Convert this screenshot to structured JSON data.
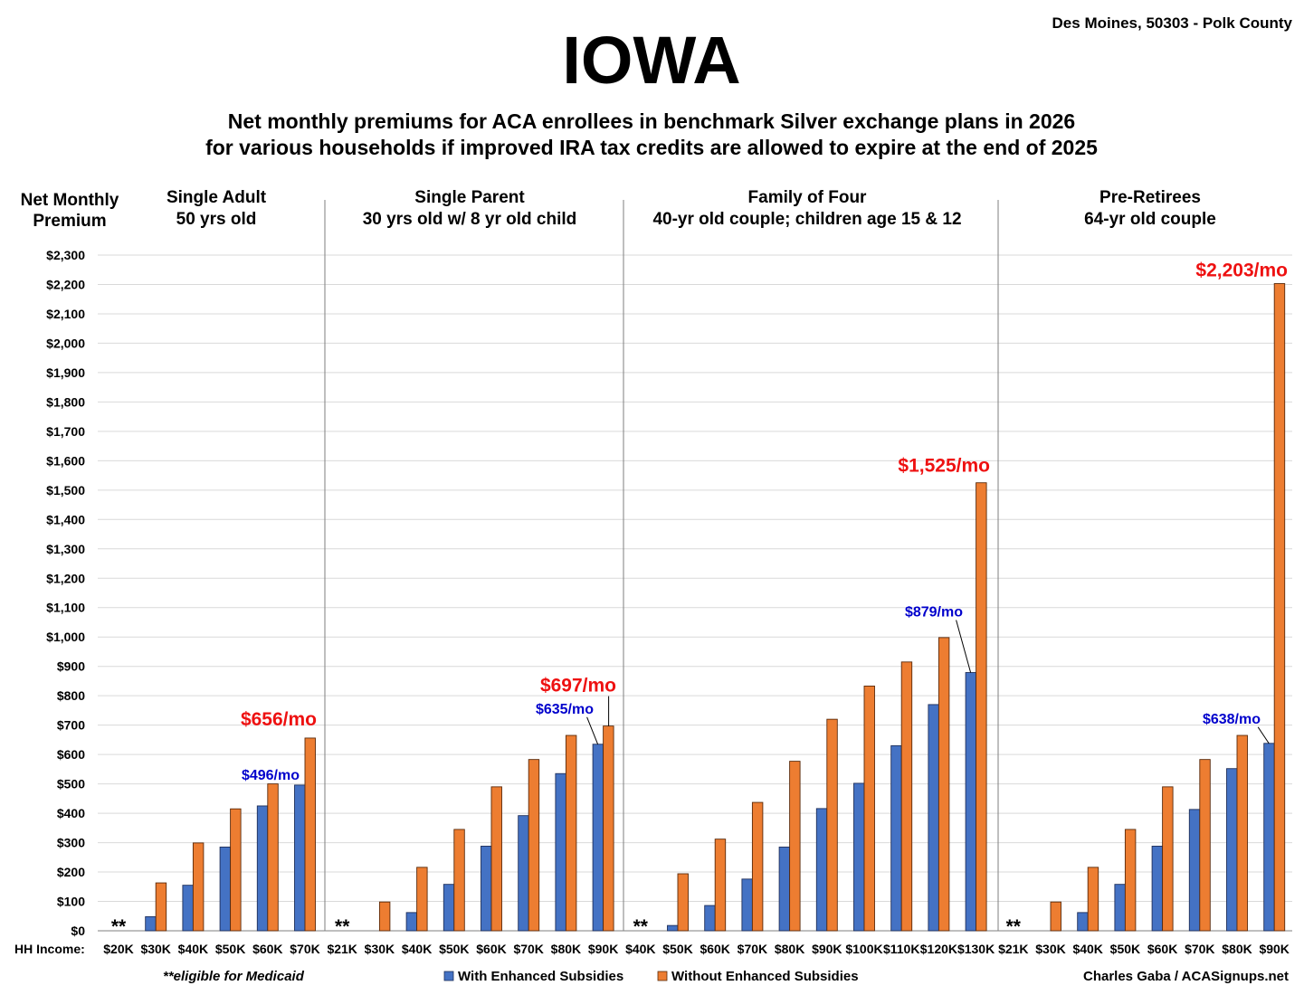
{
  "header": {
    "title": "IOWA",
    "location": "Des Moines, 50303 - Polk County",
    "subtitle_line1": "Net monthly premiums for ACA enrollees in benchmark Silver exchange plans in 2026",
    "subtitle_line2": "for various households if improved IRA tax credits are allowed to expire at the end of 2025"
  },
  "footer": {
    "medicaid_note": "**eligible for Medicaid",
    "credit": "Charles Gaba / ACASignups.net"
  },
  "colors": {
    "with": "#4472C4",
    "without": "#ED7D31",
    "callout_with": "#0000CC",
    "callout_without": "#EE1111"
  },
  "chart_data": {
    "type": "bar",
    "ylabel_line1": "Net Monthly",
    "ylabel_line2": "Premium",
    "xlabel": "HH Income:",
    "ylim": [
      0,
      2300
    ],
    "ytick_step": 100,
    "grid": true,
    "legend_position": "bottom",
    "legend": [
      "With Enhanced Subsidies",
      "Without Enhanced Subsidies"
    ],
    "medicaid_marker": "**",
    "groups": [
      {
        "title_line1": "Single Adult",
        "title_line2": "50 yrs old",
        "categories": [
          "$20K",
          "$30K",
          "$40K",
          "$50K",
          "$60K",
          "$70K"
        ],
        "with": [
          0,
          48,
          155,
          285,
          425,
          496
        ],
        "without": [
          0,
          163,
          299,
          415,
          500,
          656
        ],
        "callout_with": "$496/mo",
        "callout_without": "$656/mo"
      },
      {
        "title_line1": "Single Parent",
        "title_line2": "30 yrs old w/ 8 yr old child",
        "categories": [
          "$21K",
          "$30K",
          "$40K",
          "$50K",
          "$60K",
          "$70K",
          "$80K",
          "$90K"
        ],
        "with": [
          0,
          0,
          62,
          158,
          288,
          392,
          535,
          635
        ],
        "without": [
          0,
          98,
          216,
          345,
          490,
          583,
          665,
          697
        ],
        "callout_with": "$635/mo",
        "callout_without": "$697/mo"
      },
      {
        "title_line1": "Family of Four",
        "title_line2": "40-yr old couple; children age 15 & 12",
        "categories": [
          "$40K",
          "$50K",
          "$60K",
          "$70K",
          "$80K",
          "$90K",
          "$100K",
          "$110K",
          "$120K",
          "$130K"
        ],
        "with": [
          0,
          18,
          86,
          176,
          285,
          416,
          502,
          630,
          770,
          879
        ],
        "without": [
          0,
          194,
          312,
          437,
          577,
          720,
          833,
          915,
          998,
          1525
        ],
        "callout_with": "$879/mo",
        "callout_without": "$1,525/mo"
      },
      {
        "title_line1": "Pre-Retirees",
        "title_line2": "64-yr old couple",
        "categories": [
          "$21K",
          "$30K",
          "$40K",
          "$50K",
          "$60K",
          "$70K",
          "$80K",
          "$90K"
        ],
        "with": [
          0,
          0,
          62,
          158,
          288,
          413,
          552,
          638
        ],
        "without": [
          0,
          98,
          216,
          345,
          490,
          583,
          665,
          2203
        ],
        "callout_with": "$638/mo",
        "callout_without": "$2,203/mo"
      }
    ]
  }
}
